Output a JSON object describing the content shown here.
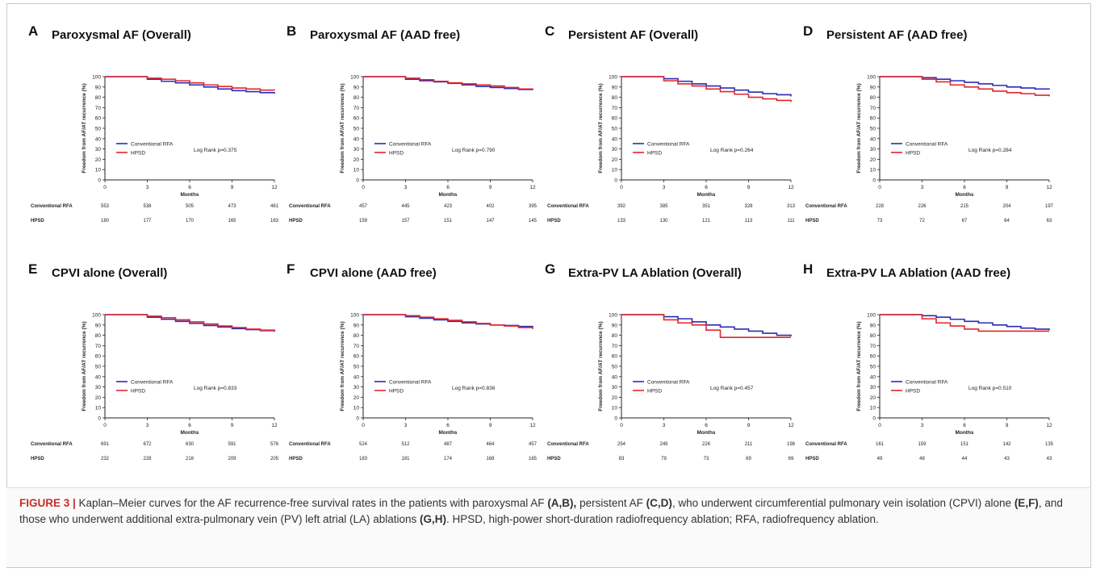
{
  "caption": {
    "label": "FIGURE 3 |",
    "parts": [
      {
        "t": " Kaplan–Meier curves for the AF recurrence-free survival rates in the patients with paroxysmal AF ",
        "b": false
      },
      {
        "t": "(A,B),",
        "b": true
      },
      {
        "t": " persistent AF ",
        "b": false
      },
      {
        "t": "(C,D)",
        "b": true
      },
      {
        "t": ", who underwent circumferential pulmonary vein isolation (CPVI) alone ",
        "b": false
      },
      {
        "t": "(E,F)",
        "b": true
      },
      {
        "t": ", and those who underwent additional extra-pulmonary vein (PV) left atrial (LA) ablations ",
        "b": false
      },
      {
        "t": "(G,H)",
        "b": true
      },
      {
        "t": ". HPSD, high-power short-duration radiofrequency ablation; RFA, radiofrequency ablation.",
        "b": false
      }
    ]
  },
  "colors": {
    "conventional": "#2b2bb5",
    "hpsd": "#e0262b",
    "axis": "#222222"
  },
  "chart_data": [
    {
      "panel": "A",
      "title": "Paroxysmal AF (Overall)",
      "type": "line",
      "xlabel": "Months",
      "ylabel": "Freedom from AF/AT recurrence (%)",
      "xlim": [
        0,
        12
      ],
      "ylim": [
        0,
        100
      ],
      "xticks": [
        0,
        3,
        6,
        9,
        12
      ],
      "yticks": [
        0,
        10,
        20,
        30,
        40,
        50,
        60,
        70,
        80,
        90,
        100
      ],
      "logrank": "Log Rank p=0.375",
      "series": [
        {
          "name": "Conventional RFA",
          "x": [
            0,
            3,
            4,
            5,
            6,
            7,
            8,
            9,
            10,
            11,
            12
          ],
          "y": [
            100,
            97.5,
            95.5,
            94,
            92,
            90,
            88,
            86.5,
            85.5,
            84.5,
            83.5
          ]
        },
        {
          "name": "HPSD",
          "x": [
            0,
            3,
            4,
            5,
            6,
            7,
            8,
            9,
            10,
            11,
            12
          ],
          "y": [
            100,
            98.5,
            97.5,
            96,
            94,
            92,
            90.5,
            89,
            88,
            87,
            86.5
          ]
        }
      ],
      "risk_table": {
        "labels": [
          "Conventional RFA",
          "HPSD"
        ],
        "rows": [
          [
            "553",
            "538",
            "505",
            "473",
            "461"
          ],
          [
            "180",
            "177",
            "170",
            "165",
            "163"
          ]
        ]
      }
    },
    {
      "panel": "B",
      "title": "Paroxysmal AF (AAD free)",
      "type": "line",
      "xlabel": "Months",
      "ylabel": "Freedom from AF/AT recurrence (%)",
      "xlim": [
        0,
        12
      ],
      "ylim": [
        0,
        100
      ],
      "xticks": [
        0,
        3,
        6,
        9,
        12
      ],
      "yticks": [
        0,
        10,
        20,
        30,
        40,
        50,
        60,
        70,
        80,
        90,
        100
      ],
      "logrank": "Log Rank p=0.790",
      "series": [
        {
          "name": "Conventional RFA",
          "x": [
            0,
            3,
            4,
            5,
            6,
            7,
            8,
            9,
            10,
            11,
            12
          ],
          "y": [
            100,
            97.5,
            96,
            95,
            93.5,
            92,
            90.5,
            89.5,
            88.5,
            87.5,
            87
          ]
        },
        {
          "name": "HPSD",
          "x": [
            0,
            3,
            4,
            5,
            6,
            7,
            8,
            9,
            10,
            11,
            12
          ],
          "y": [
            100,
            98.5,
            97,
            95.5,
            94,
            93,
            92,
            91,
            89.5,
            88,
            87.5
          ]
        }
      ],
      "risk_table": {
        "labels": [
          "Conventional RFA",
          "HPSD"
        ],
        "rows": [
          [
            "457",
            "445",
            "423",
            "402",
            "395"
          ],
          [
            "159",
            "157",
            "151",
            "147",
            "145"
          ]
        ]
      }
    },
    {
      "panel": "C",
      "title": "Persistent AF (Overall)",
      "type": "line",
      "xlabel": "Months",
      "ylabel": "Freedom from AF/AT recurrence (%)",
      "xlim": [
        0,
        12
      ],
      "ylim": [
        0,
        100
      ],
      "xticks": [
        0,
        3,
        6,
        9,
        12
      ],
      "yticks": [
        0,
        10,
        20,
        30,
        40,
        50,
        60,
        70,
        80,
        90,
        100
      ],
      "logrank": "Log Rank p=0.264",
      "series": [
        {
          "name": "Conventional RFA",
          "x": [
            0,
            3,
            4,
            5,
            6,
            7,
            8,
            9,
            10,
            11,
            12
          ],
          "y": [
            100,
            98,
            95.5,
            93,
            91,
            89,
            87,
            85,
            83.5,
            82.5,
            81
          ]
        },
        {
          "name": "HPSD",
          "x": [
            0,
            3,
            4,
            5,
            6,
            7,
            8,
            9,
            10,
            11,
            12
          ],
          "y": [
            100,
            96,
            93,
            91,
            88,
            85.5,
            83,
            80,
            78.5,
            77,
            75.5
          ]
        }
      ],
      "risk_table": {
        "labels": [
          "Conventional RFA",
          "HPSD"
        ],
        "rows": [
          [
            "392",
            "385",
            "351",
            "328",
            "313"
          ],
          [
            "133",
            "130",
            "121",
            "113",
            "111"
          ]
        ]
      }
    },
    {
      "panel": "D",
      "title": "Persistent AF (AAD free)",
      "type": "line",
      "xlabel": "Months",
      "ylabel": "Freedom from AF/AT recurrence (%)",
      "xlim": [
        0,
        12
      ],
      "ylim": [
        0,
        100
      ],
      "xticks": [
        0,
        3,
        6,
        9,
        12
      ],
      "yticks": [
        0,
        10,
        20,
        30,
        40,
        50,
        60,
        70,
        80,
        90,
        100
      ],
      "logrank": "Log Rank p=0.284",
      "series": [
        {
          "name": "Conventional RFA",
          "x": [
            0,
            3,
            4,
            5,
            6,
            7,
            8,
            9,
            10,
            11,
            12
          ],
          "y": [
            100,
            99,
            97.5,
            96,
            94.5,
            93,
            91.5,
            90,
            89,
            88,
            87.5
          ]
        },
        {
          "name": "HPSD",
          "x": [
            0,
            3,
            4,
            5,
            6,
            7,
            8,
            9,
            10,
            11,
            12
          ],
          "y": [
            100,
            97.5,
            95,
            92,
            90,
            88,
            86,
            84.5,
            83.5,
            82,
            81
          ]
        }
      ],
      "risk_table": {
        "labels": [
          "Conventional RFA",
          "HPSD"
        ],
        "rows": [
          [
            "228",
            "226",
            "215",
            "204",
            "197"
          ],
          [
            "73",
            "72",
            "67",
            "64",
            "63"
          ]
        ]
      }
    },
    {
      "panel": "E",
      "title": "CPVI alone (Overall)",
      "type": "line",
      "xlabel": "Months",
      "ylabel": "Freedom from AF/AT recurrence (%)",
      "xlim": [
        0,
        12
      ],
      "ylim": [
        0,
        100
      ],
      "xticks": [
        0,
        3,
        6,
        9,
        12
      ],
      "yticks": [
        0,
        10,
        20,
        30,
        40,
        50,
        60,
        70,
        80,
        90,
        100
      ],
      "logrank": "Log Rank p=0.833",
      "series": [
        {
          "name": "Conventional RFA",
          "x": [
            0,
            3,
            4,
            5,
            6,
            7,
            8,
            9,
            10,
            11,
            12
          ],
          "y": [
            100,
            97.5,
            95.5,
            93.5,
            91.5,
            89.5,
            88,
            86.5,
            85.5,
            84.5,
            83.5
          ]
        },
        {
          "name": "HPSD",
          "x": [
            0,
            3,
            4,
            5,
            6,
            7,
            8,
            9,
            10,
            11,
            12
          ],
          "y": [
            100,
            98.5,
            97,
            95,
            93,
            91,
            89,
            87.5,
            86,
            85,
            84
          ]
        }
      ],
      "risk_table": {
        "labels": [
          "Conventional RFA",
          "HPSD"
        ],
        "rows": [
          [
            "691",
            "672",
            "630",
            "591",
            "576"
          ],
          [
            "232",
            "228",
            "218",
            "209",
            "205"
          ]
        ]
      }
    },
    {
      "panel": "F",
      "title": "CPVI alone (AAD free)",
      "type": "line",
      "xlabel": "Months",
      "ylabel": "Freedom from AF/AT recurrence (%)",
      "xlim": [
        0,
        12
      ],
      "ylim": [
        0,
        100
      ],
      "xticks": [
        0,
        3,
        6,
        9,
        12
      ],
      "yticks": [
        0,
        10,
        20,
        30,
        40,
        50,
        60,
        70,
        80,
        90,
        100
      ],
      "logrank": "Log Rank p=0.836",
      "series": [
        {
          "name": "Conventional RFA",
          "x": [
            0,
            3,
            4,
            5,
            6,
            7,
            8,
            9,
            10,
            11,
            12
          ],
          "y": [
            100,
            98,
            96.5,
            95,
            93.5,
            92,
            91,
            90,
            89.5,
            88.5,
            88
          ]
        },
        {
          "name": "HPSD",
          "x": [
            0,
            3,
            4,
            5,
            6,
            7,
            8,
            9,
            10,
            11,
            12
          ],
          "y": [
            100,
            99,
            97.5,
            96,
            94.5,
            93,
            91.5,
            90,
            89,
            87.5,
            86
          ]
        }
      ],
      "risk_table": {
        "labels": [
          "Conventional RFA",
          "HPSD"
        ],
        "rows": [
          [
            "524",
            "512",
            "487",
            "464",
            "457"
          ],
          [
            "183",
            "181",
            "174",
            "168",
            "165"
          ]
        ]
      }
    },
    {
      "panel": "G",
      "title": "Extra-PV LA Ablation (Overall)",
      "type": "line",
      "xlabel": "Months",
      "ylabel": "Freedom from AF/AT recurrence (%)",
      "xlim": [
        0,
        12
      ],
      "ylim": [
        0,
        100
      ],
      "xticks": [
        0,
        3,
        6,
        9,
        12
      ],
      "yticks": [
        0,
        10,
        20,
        30,
        40,
        50,
        60,
        70,
        80,
        90,
        100
      ],
      "logrank": "Log Rank p=0.457",
      "series": [
        {
          "name": "Conventional RFA",
          "x": [
            0,
            3,
            4,
            5,
            6,
            7,
            8,
            9,
            10,
            11,
            12
          ],
          "y": [
            100,
            98,
            96,
            93,
            90,
            88,
            86,
            84,
            82,
            80,
            79
          ]
        },
        {
          "name": "HPSD",
          "x": [
            0,
            3,
            4,
            5,
            6,
            7,
            8,
            9,
            10,
            11,
            12
          ],
          "y": [
            100,
            95,
            92,
            90,
            85,
            78,
            78,
            78,
            78,
            78,
            78
          ]
        }
      ],
      "risk_table": {
        "labels": [
          "Conventional RFA",
          "HPSD"
        ],
        "rows": [
          [
            "254",
            "249",
            "226",
            "211",
            "198"
          ],
          [
            "83",
            "79",
            "73",
            "69",
            "69"
          ]
        ]
      }
    },
    {
      "panel": "H",
      "title": "Extra-PV LA Ablation (AAD free)",
      "type": "line",
      "xlabel": "Months",
      "ylabel": "Freedom from AF/AT recurrence (%)",
      "xlim": [
        0,
        12
      ],
      "ylim": [
        0,
        100
      ],
      "xticks": [
        0,
        3,
        6,
        9,
        12
      ],
      "yticks": [
        0,
        10,
        20,
        30,
        40,
        50,
        60,
        70,
        80,
        90,
        100
      ],
      "logrank": "Log Rank p=0.510",
      "series": [
        {
          "name": "Conventional RFA",
          "x": [
            0,
            3,
            4,
            5,
            6,
            7,
            8,
            9,
            10,
            11,
            12
          ],
          "y": [
            100,
            99,
            97.5,
            95.5,
            93.5,
            92,
            90,
            88.5,
            87,
            86,
            85
          ]
        },
        {
          "name": "HPSD",
          "x": [
            0,
            3,
            4,
            5,
            6,
            7,
            8,
            9,
            10,
            11,
            12
          ],
          "y": [
            100,
            96,
            92,
            89,
            86,
            84,
            84,
            84,
            84,
            84,
            84
          ]
        }
      ],
      "risk_table": {
        "labels": [
          "Conventional RFA",
          "HPSD"
        ],
        "rows": [
          [
            "161",
            "159",
            "151",
            "142",
            "135"
          ],
          [
            "49",
            "48",
            "44",
            "43",
            "43"
          ]
        ]
      }
    }
  ]
}
